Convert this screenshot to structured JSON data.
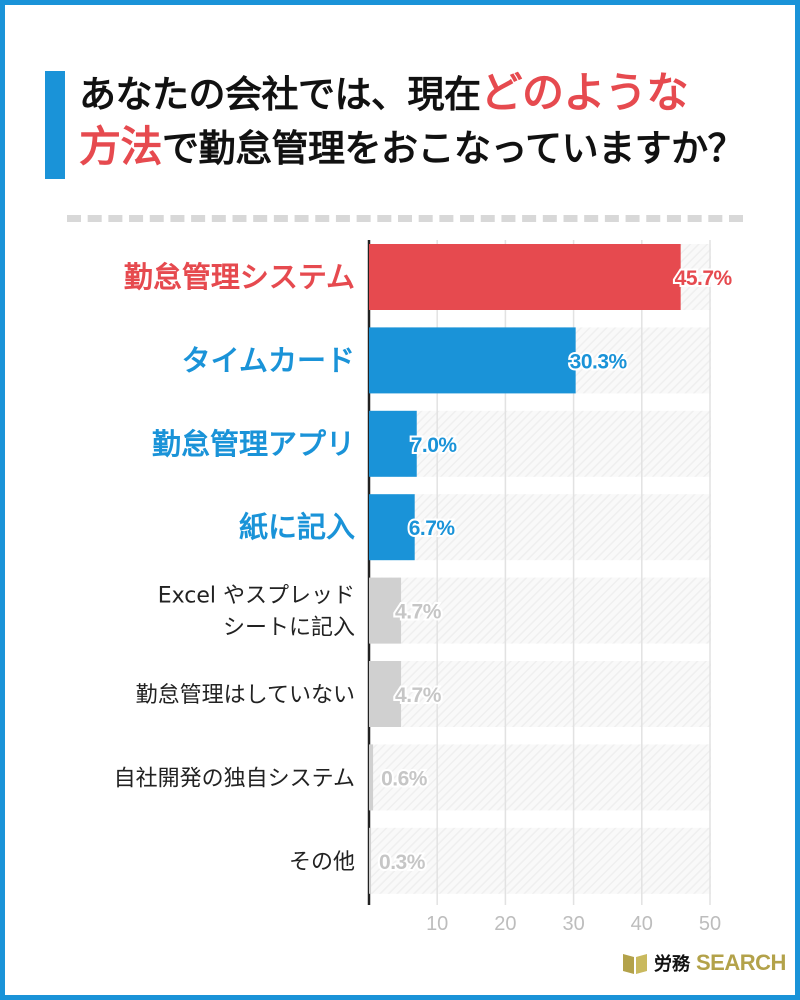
{
  "title": {
    "part1": "あなたの会社では、現在",
    "highlight1": "どのような",
    "highlight2": "方法",
    "part2": "で勤怠管理をおこなっていますか？"
  },
  "colors": {
    "accent_red": "#e64a4f",
    "accent_blue": "#1a93d8",
    "muted_bar": "#d0d0d0",
    "muted_text": "#c6c6c6",
    "dark_text": "#222222",
    "frame": "#1a93d8"
  },
  "logo": {
    "jp": "労務",
    "en": "SEARCH",
    "icon": "book-icon"
  },
  "chart_data": {
    "type": "bar",
    "orientation": "horizontal",
    "categories": [
      [
        "勤怠管理システム"
      ],
      [
        "タイムカード"
      ],
      [
        "勤怠管理アプリ"
      ],
      [
        "紙に記入"
      ],
      [
        "Excel やスプレッド",
        "シートに記入"
      ],
      [
        "勤怠管理はしていない"
      ],
      [
        "自社開発の独自システム"
      ],
      [
        "その他"
      ]
    ],
    "values": [
      45.7,
      30.3,
      7.0,
      6.7,
      4.7,
      4.7,
      0.6,
      0.3
    ],
    "value_labels": [
      "45.7%",
      "30.3%",
      "7.0%",
      "6.7%",
      "4.7%",
      "4.7%",
      "0.6%",
      "0.3%"
    ],
    "styles": [
      "red",
      "blue",
      "blue",
      "blue",
      "gray",
      "gray",
      "gray",
      "gray"
    ],
    "xlim": [
      0,
      50
    ],
    "xticks": [
      10,
      20,
      30,
      40,
      50
    ],
    "grid": true
  }
}
